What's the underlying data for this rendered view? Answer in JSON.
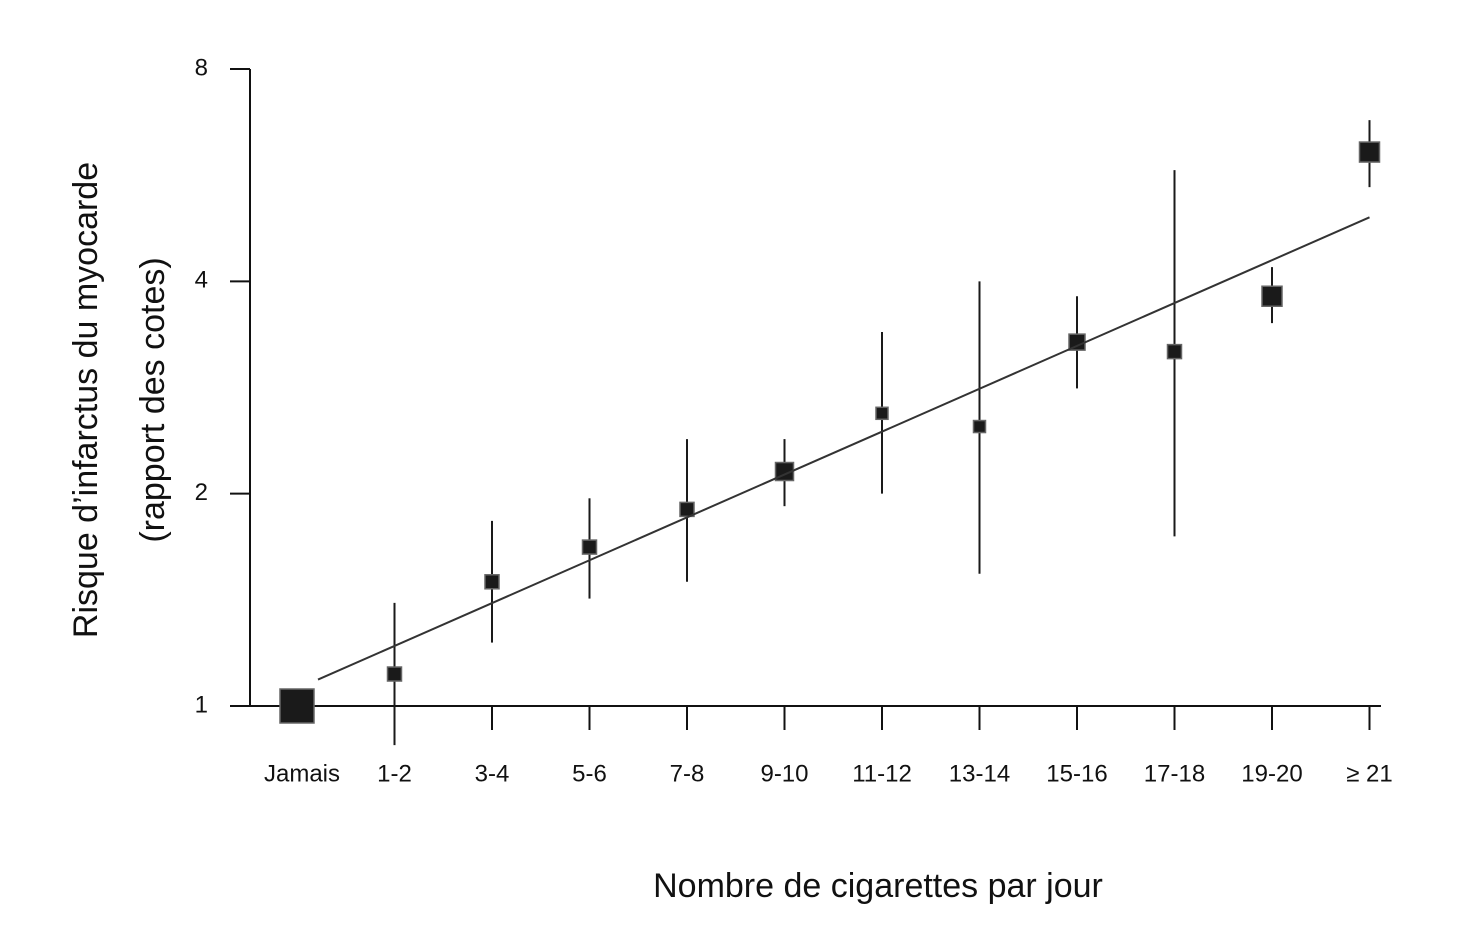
{
  "chart_data": {
    "type": "errorbar",
    "y_label": [
      "Risque d’infarctus du myocarde",
      "(rapport des cotes)"
    ],
    "x_label": "Nombre de cigarettes par jour",
    "categories": [
      "Jamais",
      "1-2",
      "3-4",
      "5-6",
      "7-8",
      "9-10",
      "11-12",
      "13-14",
      "15-16",
      "17-18",
      "19-20",
      "≥ 21"
    ],
    "series": [
      {
        "color": "#1a1a1a",
        "values": [
          1.0,
          1.11,
          1.5,
          1.68,
          1.9,
          2.15,
          2.6,
          2.49,
          3.28,
          3.18,
          3.81,
          6.1
        ],
        "ci_low": [
          null,
          0.88,
          1.23,
          1.42,
          1.5,
          1.92,
          2.0,
          1.54,
          2.82,
          1.74,
          3.49,
          5.44
        ],
        "ci_high": [
          null,
          1.4,
          1.83,
          1.97,
          2.39,
          2.39,
          3.39,
          4.0,
          3.81,
          5.75,
          4.19,
          6.77
        ]
      }
    ],
    "trend": {
      "values": [
        1.09,
        4.93
      ],
      "color": "#333333"
    },
    "ylim": [
      1,
      8
    ],
    "yticks": [
      1,
      2,
      4,
      8
    ],
    "log_y": true,
    "grid": false
  }
}
